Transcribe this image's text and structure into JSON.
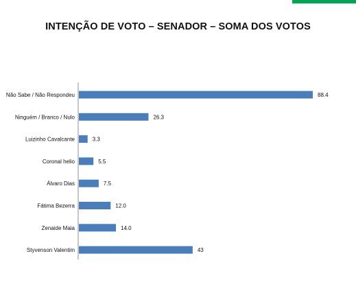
{
  "page": {
    "title": "INTENÇÃO DE VOTO – SENADOR – SOMA DOS VOTOS",
    "accent_color": "#00a651"
  },
  "chart_data": {
    "type": "bar",
    "orientation": "horizontal",
    "title": "INTENÇÃO DE VOTO – SENADOR – SOMA DOS VOTOS",
    "categories": [
      "Não Sabe / Não Respondeu",
      "Ninguém / Branco / Nulo",
      "Luizinho Cavalcante",
      "Coronal helio",
      "Álvaro Dias",
      "Fátima Bezerra",
      "Zenaide Maia",
      "Styvenson Valentim"
    ],
    "values": [
      88.4,
      26.3,
      3.3,
      5.5,
      7.5,
      12.0,
      14.0,
      43
    ],
    "value_labels": [
      "88.4",
      "26.3",
      "3.3",
      "5.5",
      "7.5",
      "12.0",
      "14.0",
      "43"
    ],
    "bar_color": "#4a7ebb",
    "xlim": [
      0,
      100
    ],
    "grid": false,
    "legend": "none"
  }
}
